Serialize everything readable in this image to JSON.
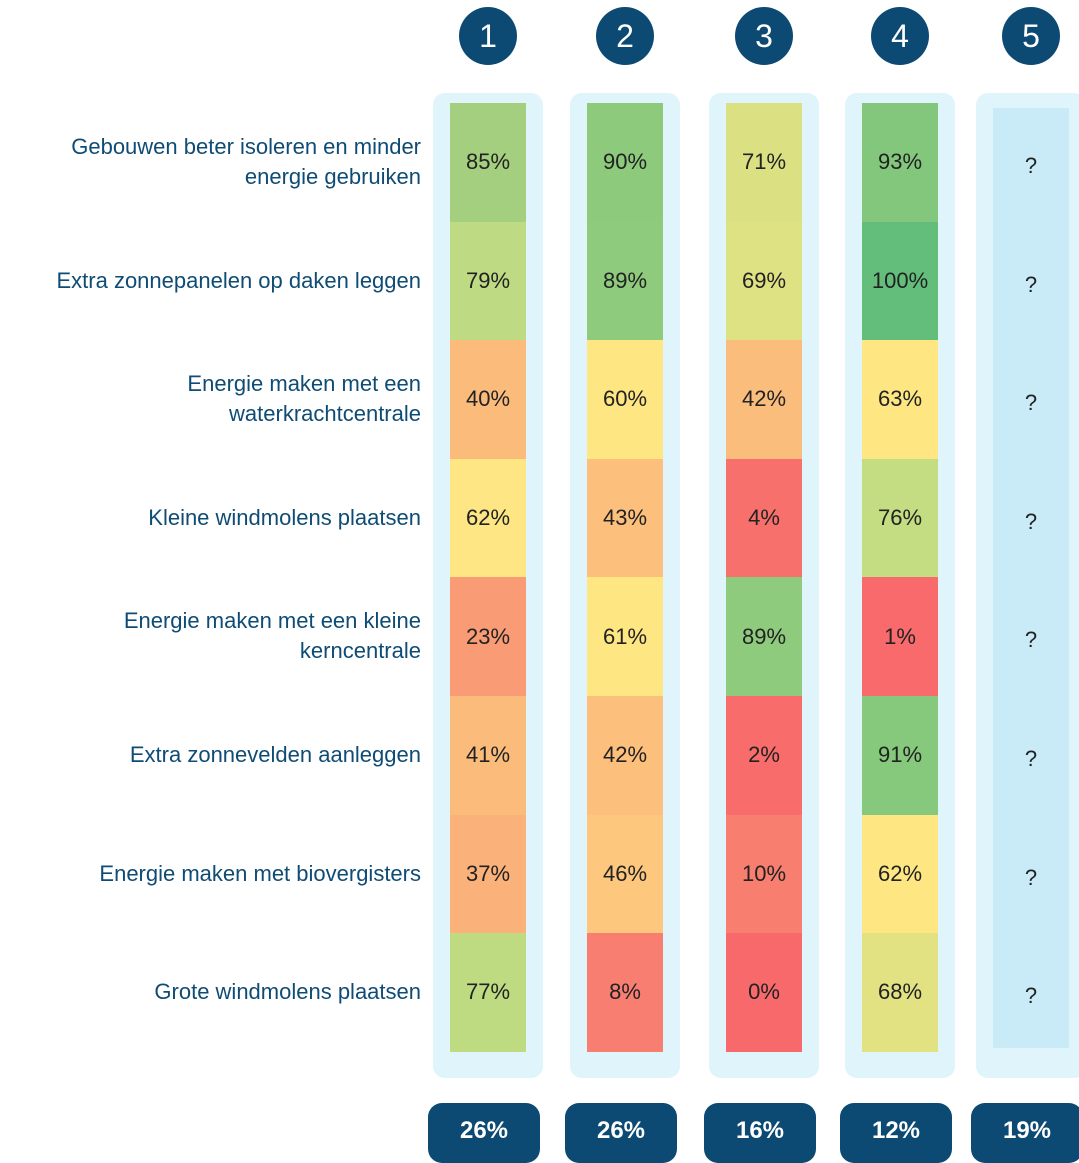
{
  "rows": [
    "Gebouwen beter isoleren en minder energie gebruiken",
    "Extra zonnepanelen op daken leggen",
    "Energie maken met een waterkrachtcentrale",
    "Kleine windmolens plaatsen",
    "Energie maken met een kleine kerncentrale",
    "Extra zonnevelden aanleggen",
    "Energie maken met biovergisters",
    "Grote windmolens plaatsen"
  ],
  "columns": [
    {
      "number": "1",
      "cells": [
        "85%",
        "79%",
        "40%",
        "62%",
        "23%",
        "41%",
        "37%",
        "77%"
      ],
      "colors": [
        "#a3cf7e",
        "#bedb83",
        "#fbbb7b",
        "#fde683",
        "#f99c76",
        "#fbbc7b",
        "#fbb27a",
        "#bfdb82"
      ],
      "total": "26%"
    },
    {
      "number": "2",
      "cells": [
        "90%",
        "89%",
        "60%",
        "43%",
        "61%",
        "42%",
        "46%",
        "8%"
      ],
      "colors": [
        "#8dca7c",
        "#8fcb7d",
        "#fee783",
        "#fcc07c",
        "#fee783",
        "#fcbf7c",
        "#fdc77d",
        "#f87e71"
      ],
      "total": "26%"
    },
    {
      "number": "3",
      "cells": [
        "71%",
        "69%",
        "42%",
        "4%",
        "89%",
        "2%",
        "10%",
        "0%"
      ],
      "colors": [
        "#dbe182",
        "#dfe283",
        "#fbbd7b",
        "#f8706c",
        "#8fcb7d",
        "#f86c6b",
        "#f87f70",
        "#f8696b"
      ],
      "total": "16%"
    },
    {
      "number": "4",
      "cells": [
        "93%",
        "100%",
        "63%",
        "76%",
        "1%",
        "91%",
        "62%",
        "68%"
      ],
      "colors": [
        "#83c77c",
        "#63be7b",
        "#fee783",
        "#c4dc82",
        "#f86a6b",
        "#86c87c",
        "#fee783",
        "#e2e283"
      ],
      "total": "12%"
    },
    {
      "number": "5",
      "cells": [
        "?",
        "?",
        "?",
        "?",
        "?",
        "?",
        "?",
        "?"
      ],
      "colors": [
        "#c9ebf8",
        "#c9ebf8",
        "#c9ebf8",
        "#c9ebf8",
        "#c9ebf8",
        "#c9ebf8",
        "#c9ebf8",
        "#c9ebf8"
      ],
      "total": "19%"
    }
  ]
}
